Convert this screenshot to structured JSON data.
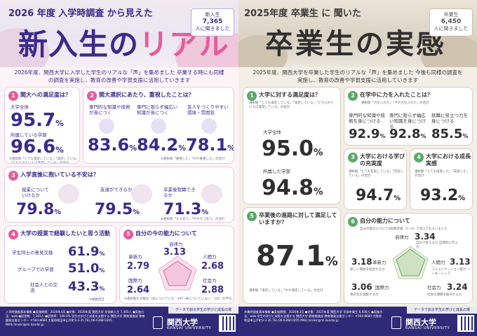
{
  "left": {
    "header": {
      "year_line": "2026 年度 入学時調査 から見えた",
      "title_a": "新入生の",
      "title_b": "リアル",
      "badge_label": "新入生",
      "badge_count": "7,365",
      "badge_suffix": "人に聞きました"
    },
    "intro": "2026年度、関西大学に入学した学生のリアルな「声」を集めました 卒業する時にも同様の調査を実施し、教育の改善や学習支援に活用していきます",
    "satisfaction": {
      "number": "1",
      "title": "関大への満足度は？",
      "overall_label": "大学全体",
      "overall_value": "95.7",
      "overall_unit": "%",
      "faculty_label": "所属している学部",
      "faculty_value": "96.6",
      "faculty_unit": "%",
      "note": "※選択肢「とても満足している」「満足している」「どちらかといえば満足している」の合計"
    },
    "priorities": {
      "number": "2",
      "title": "関大選択にあたり、重視したことは？",
      "items": [
        {
          "label": "専門的な知識や技術が身につく",
          "value": "83.6",
          "unit": "%"
        },
        {
          "label": "専門に限らず幅広い知識が身につく",
          "value": "84.2",
          "unit": "%"
        },
        {
          "label": "友人をつくりやすい環境・雰囲気",
          "value": "78.1",
          "unit": "%"
        }
      ],
      "note": "※選択肢「重視した」「やや重視した」の合計"
    },
    "anxiety": {
      "number": "3",
      "title": "入学直後に抱いている不安は？",
      "items": [
        {
          "label": "授業についていけるか",
          "value": "79.8",
          "unit": "%"
        },
        {
          "label": "友達ができるか",
          "value": "79.5",
          "unit": "%"
        },
        {
          "label": "卒業後就職できるか",
          "value": "71.3",
          "unit": "%"
        }
      ],
      "note": "※選択肢「そう思う」「ややそう思う」の合計"
    },
    "activities": {
      "number": "4",
      "title": "大学の授業で経験したいと思う活動",
      "items": [
        {
          "label": "学生同士の意見交換",
          "value": "61.9",
          "unit": "%"
        },
        {
          "label": "グループでの学習",
          "value": "51.0",
          "unit": "%"
        },
        {
          "label": "社会人との交流",
          "value": "43.3",
          "unit": "%"
        }
      ],
      "note": "※複数回答"
    },
    "abilities": {
      "number": "5",
      "title": "自分の今の能力について",
      "items": [
        {
          "label": "自律力",
          "value": "3.13"
        },
        {
          "label": "革新力",
          "value": "2.79"
        },
        {
          "label": "人間力",
          "value": "2.68"
        },
        {
          "label": "国際力",
          "value": "2.64"
        },
        {
          "label": "社会力",
          "value": "2.88"
        }
      ],
      "note": "※選択肢を点数化（身についている：4点～身についていない：1点）の平均"
    },
    "footer": {
      "text": "入学時調査基本情報 ●実施期間：2026年4月 ●対象：2026年度 関西大学 学部新入生 7,365人 ●実施方法：web ●回答数：7,365人 ●回答率：100.0% 学生の学びと成長を支援する 関西大学 教育推進部 教育開発支援センター 〒564-8680 大阪府吹田市山手町3-3-35 TEL:06-6368-0205 MAIL:hirakir@ml.kandai.jp",
      "band": "データで創る学生の学びと成長の場",
      "uni": "関西大学",
      "uni_en": "KANSAI UNIVERSITY"
    }
  },
  "right": {
    "header": {
      "year_line": "2025年度 卒業生 に 聞いた",
      "title": "卒業生の実感",
      "badge_label": "卒業生",
      "badge_count": "6,450",
      "badge_suffix": "人に聞きました"
    },
    "intro": "2025年度、関西大学を卒業した学生のリアルな「声」を集めました 今後も同様の調査を実施し、教育の改善や学習支援に活用していきます",
    "satisfaction": {
      "number": "1",
      "title": "大学に対する満足度は？",
      "note": "選択肢「とても満足している」「満足している」「どちらかといえば満足している」の合計",
      "overall_label": "大学全体",
      "overall_value": "95.0",
      "overall_unit": "%",
      "faculty_label": "所属した学部",
      "faculty_value": "94.8",
      "faculty_unit": "%"
    },
    "efforts": {
      "number": "2",
      "title": "在学中に力を入れたことは？",
      "note": "選択肢「力を入れた」「やや力を入れた」の合計",
      "items": [
        {
          "label": "専門的な知識や技術を身につける",
          "value": "92.9",
          "unit": "%"
        },
        {
          "label": "専門に限らず幅広い知識を身につける",
          "value": "92.8",
          "unit": "%"
        },
        {
          "label": "就職に役立つ力を身につける",
          "value": "85.5",
          "unit": "%"
        }
      ]
    },
    "fulfillment": {
      "number": "3",
      "title": "大学における学びの充実度",
      "note": "選択肢「とても充実している」「充実している」の合計",
      "value": "94.7",
      "unit": "%"
    },
    "growth": {
      "number": "4",
      "title": "大学における成長実感",
      "note": "選択肢「とても成長した」「成長した」の合計",
      "value": "93.2",
      "unit": "%"
    },
    "career": {
      "number": "5",
      "title": "卒業後の進路に対して満足していますか？",
      "value": "87.1",
      "unit": "%",
      "note": "選択肢「満足している」「やや満足している」の合計"
    },
    "abilities": {
      "number": "6",
      "title": "自分の能力について",
      "subtitle": "自分の能力について4段階評価（1～4）で答えてもらいました",
      "items": [
        {
          "label": "自律力",
          "value": "3.34",
          "desc": "自分で考える力 自律的に学ぶ力"
        },
        {
          "label": "革新力",
          "value": "3.18",
          "desc": "新しい価値を創造する力"
        },
        {
          "label": "人間力",
          "value": "3.13",
          "desc": "コミュニケーション能力 リーダーシップ"
        },
        {
          "label": "国際力",
          "value": "3.06",
          "desc": "異文化を理解する力"
        },
        {
          "label": "社会力",
          "value": "3.24",
          "desc": "社会の課題を解決する力"
        }
      ]
    },
    "footer": {
      "text": "卒業時調査基本情報 ●実施期間：2026年3月 ●対象：2025年度 関西大学 学部卒業生 6,450人 ●実施方法：web 学生の学びと成長を支援する 関西大学 教育推進部 教育開発支援センター 〒564-8680 大阪府吹田市山手町3-3-35 TEL:06-6368-0205 MAIL:hirakir@ml.kandai.jp",
      "band": "データで創る学生の学びと成長の場",
      "uni": "関西大学",
      "uni_en": "KANSAI UNIVERSITY"
    }
  }
}
